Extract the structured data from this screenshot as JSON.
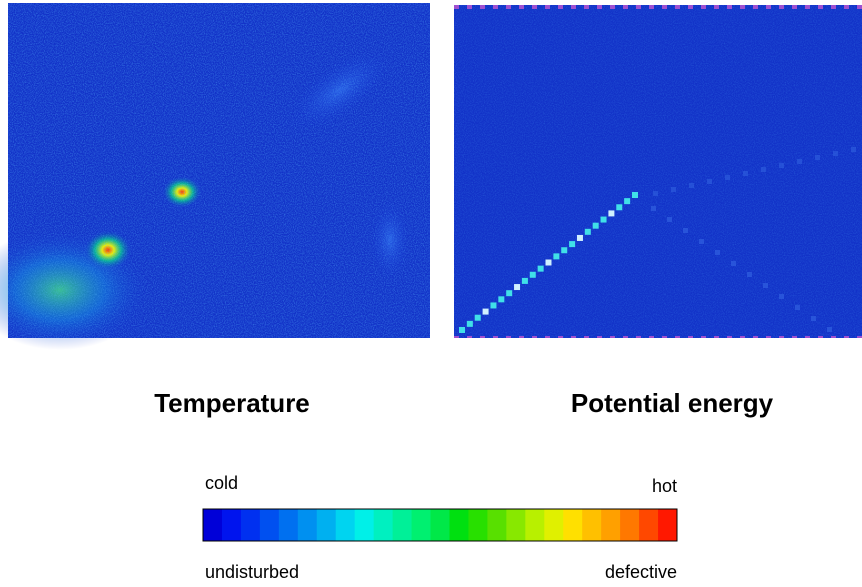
{
  "panels": [
    {
      "title": "Temperature"
    },
    {
      "title": "Potential energy"
    }
  ],
  "colorbar": {
    "top_left": "cold",
    "top_right": "hot",
    "bottom_left": "undisturbed",
    "bottom_right": "defective",
    "colors": [
      "#0000d8",
      "#0014ee",
      "#0030f0",
      "#0050f0",
      "#0070f0",
      "#0090f0",
      "#00b0f0",
      "#00d4f0",
      "#00f0e8",
      "#00f0c0",
      "#00f098",
      "#00f070",
      "#00e848",
      "#00e010",
      "#28e000",
      "#58e000",
      "#88e800",
      "#b8f000",
      "#e0f000",
      "#ffe000",
      "#ffc000",
      "#ffa000",
      "#ff7800",
      "#ff4800",
      "#ff1800"
    ]
  }
}
